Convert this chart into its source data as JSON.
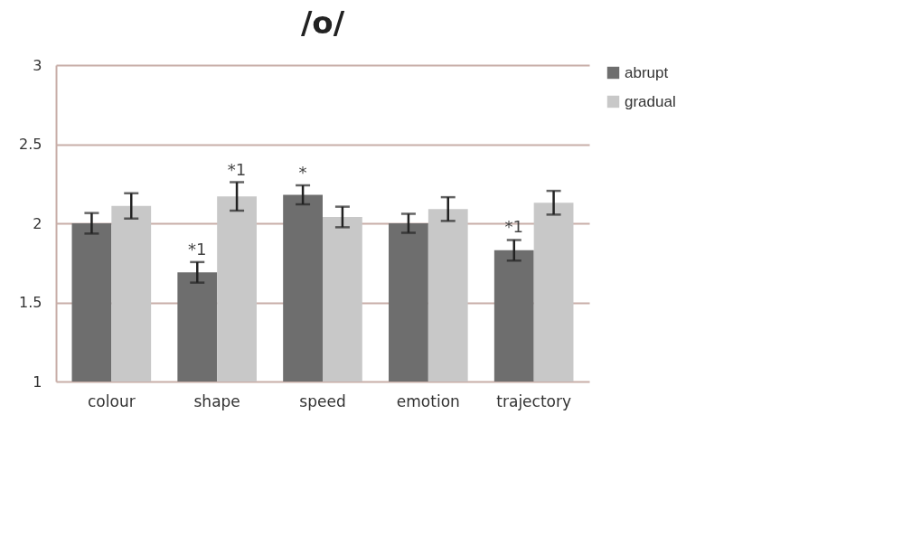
{
  "chart_data": {
    "type": "bar",
    "title": "/o/",
    "categories": [
      "colour",
      "shape",
      "speed",
      "emotion",
      "trajectory"
    ],
    "series": [
      {
        "name": "abrupt",
        "color": "#6e6e6e",
        "values": [
          2.0,
          1.69,
          2.18,
          2.0,
          1.83
        ],
        "errors": [
          0.065,
          0.065,
          0.06,
          0.06,
          0.065
        ]
      },
      {
        "name": "gradual",
        "color": "#c8c8c8",
        "values": [
          2.11,
          2.17,
          2.04,
          2.09,
          2.13
        ],
        "errors": [
          0.08,
          0.09,
          0.065,
          0.075,
          0.075
        ]
      }
    ],
    "ylim": [
      1,
      3
    ],
    "yticks": [
      1,
      1.5,
      2,
      2.5,
      3
    ],
    "grid": "y",
    "legend": "right",
    "annotations": [
      {
        "text": "*1",
        "x": "shape",
        "y": 1.69
      },
      {
        "text": "*1",
        "x": "shape",
        "y": 2.17
      },
      {
        "text": "*",
        "x": "speed",
        "y": 2.18
      },
      {
        "text": "*1",
        "x": "trajectory",
        "y": 1.83
      }
    ]
  }
}
